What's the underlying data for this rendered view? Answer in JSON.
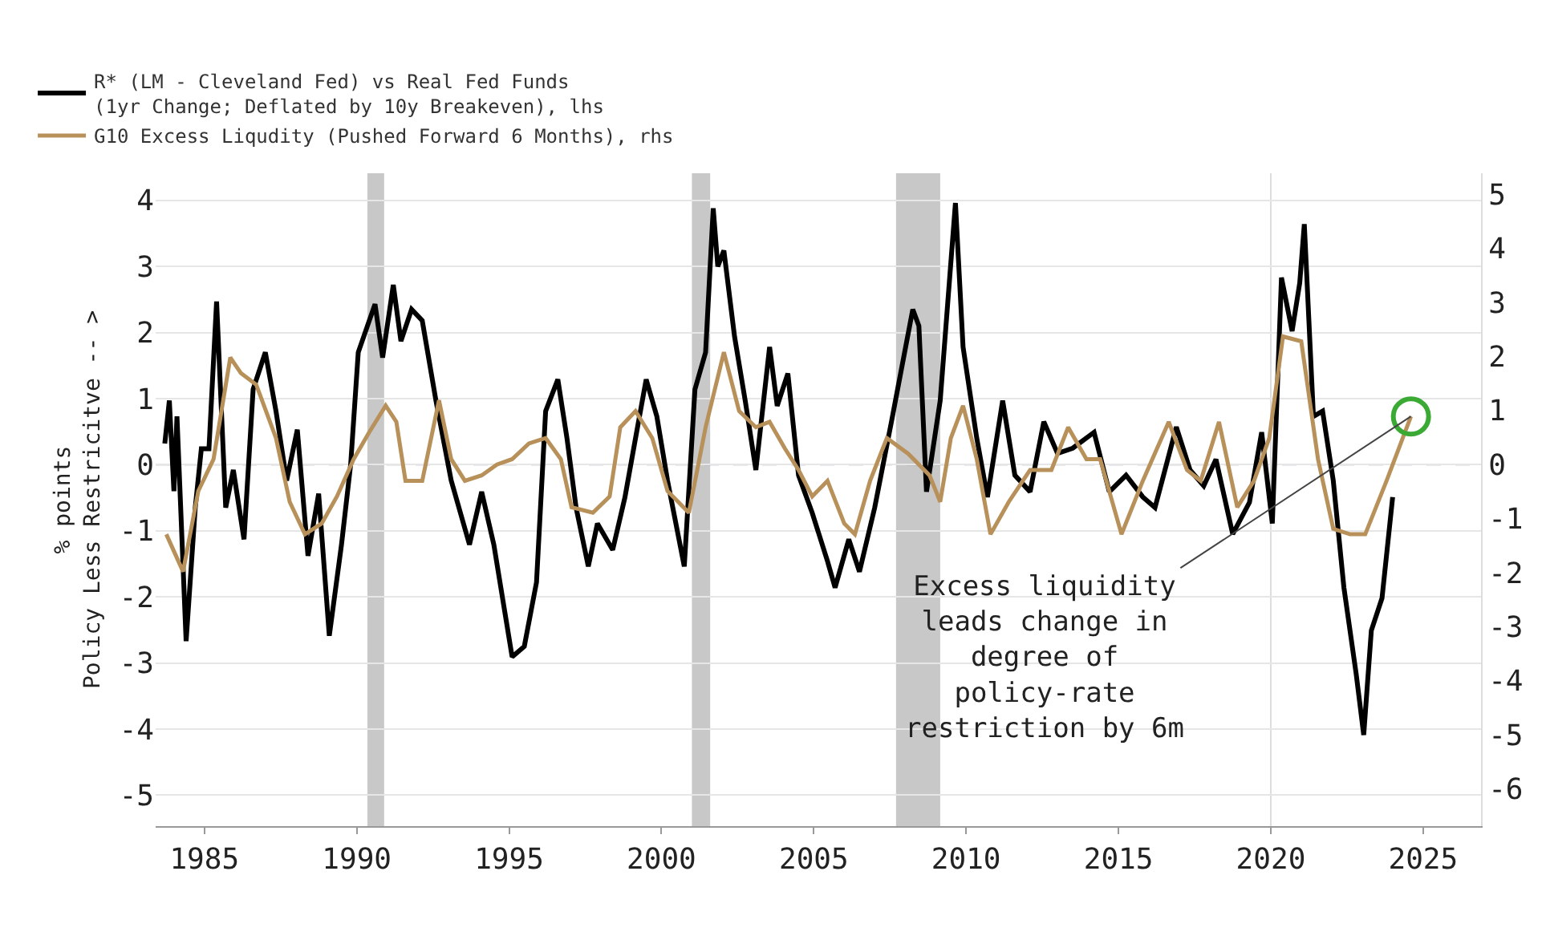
{
  "chart_data": {
    "type": "line",
    "ylabel": "% points\nPolicy Less Restricitve -- >",
    "xlim": [
      1983.4,
      2026.9
    ],
    "xticks": [
      1985,
      1990,
      1995,
      2000,
      2005,
      2010,
      2015,
      2020,
      2025
    ],
    "ylim": [
      -5.47,
      4.41
    ],
    "yticks": [
      -5,
      -4,
      -3,
      -2,
      -1,
      0,
      1,
      2,
      3,
      4
    ],
    "y2lim": [
      -6.69,
      5.39
    ],
    "y2ticks": [
      -6,
      -5,
      -4,
      -3,
      -2,
      -1,
      0,
      1,
      2,
      3,
      4,
      5
    ],
    "grid": "y",
    "legend": "top left",
    "line_style": "solid",
    "marker": "none",
    "series": [
      {
        "name": "R* (LM - Cleveland Fed) vs Real Fed Funds\n(1yr Change; Deflated by 10y Breakeven), lhs",
        "color": "#000000",
        "x": [
          1983.7,
          1983.85,
          1984.0,
          1984.1,
          1984.4,
          1984.7,
          1984.9,
          1985.15,
          1985.4,
          1985.7,
          1985.95,
          1986.3,
          1986.6,
          1987.0,
          1987.35,
          1987.7,
          1988.05,
          1988.4,
          1988.75,
          1989.1,
          1989.5,
          1989.8,
          1990.05,
          1990.6,
          1990.85,
          1991.2,
          1991.45,
          1991.8,
          1992.15,
          1992.6,
          1993.1,
          1993.7,
          1994.1,
          1994.5,
          1995.1,
          1995.5,
          1995.9,
          1996.2,
          1996.6,
          1996.9,
          1997.2,
          1997.6,
          1997.9,
          1998.4,
          1998.8,
          1999.15,
          1999.5,
          1999.85,
          2000.2,
          2000.75,
          2001.1,
          2001.45,
          2001.7,
          2001.85,
          2002.05,
          2002.4,
          2002.75,
          2003.1,
          2003.55,
          2003.8,
          2004.15,
          2004.5,
          2004.95,
          2005.45,
          2005.7,
          2006.15,
          2006.5,
          2007.0,
          2007.55,
          2008.25,
          2008.45,
          2008.7,
          2009.15,
          2009.65,
          2009.9,
          2010.35,
          2010.7,
          2011.2,
          2011.6,
          2012.1,
          2012.55,
          2013.0,
          2013.5,
          2014.2,
          2014.7,
          2015.25,
          2015.8,
          2016.2,
          2016.9,
          2017.35,
          2017.8,
          2018.2,
          2018.75,
          2019.3,
          2019.7,
          2020.05,
          2020.35,
          2020.7,
          2020.95,
          2021.1,
          2021.4,
          2021.7,
          2022.05,
          2022.4,
          2022.8,
          2023.05,
          2023.3,
          2023.65,
          2024.0
        ],
        "values": [
          0.32,
          0.97,
          -0.4,
          0.73,
          -2.67,
          -0.65,
          0.24,
          0.24,
          2.47,
          -0.65,
          -0.08,
          -1.13,
          1.14,
          1.7,
          0.81,
          -0.24,
          0.53,
          -1.38,
          -0.44,
          -2.59,
          -1.21,
          0.0,
          1.7,
          2.43,
          1.62,
          2.72,
          1.87,
          2.35,
          2.18,
          0.97,
          -0.24,
          -1.21,
          -0.41,
          -1.21,
          -2.91,
          -2.75,
          -1.78,
          0.81,
          1.29,
          0.4,
          -0.65,
          -1.54,
          -0.89,
          -1.29,
          -0.5,
          0.4,
          1.29,
          0.73,
          -0.24,
          -1.54,
          1.14,
          1.7,
          3.88,
          3.0,
          3.24,
          1.94,
          0.97,
          -0.08,
          1.78,
          0.89,
          1.38,
          -0.16,
          -0.73,
          -1.46,
          -1.86,
          -1.13,
          -1.62,
          -0.65,
          0.65,
          2.35,
          2.1,
          -0.41,
          0.97,
          3.96,
          1.78,
          0.4,
          -0.49,
          0.97,
          -0.16,
          -0.41,
          0.65,
          0.17,
          0.25,
          0.49,
          -0.41,
          -0.16,
          -0.49,
          -0.65,
          0.57,
          -0.08,
          -0.32,
          0.08,
          -1.05,
          -0.57,
          0.49,
          -0.89,
          2.83,
          2.02,
          2.75,
          3.64,
          0.73,
          0.81,
          -0.24,
          -1.86,
          -3.16,
          -4.09,
          -2.51,
          -2.02,
          -0.49
        ]
      },
      {
        "name": "G10 Excess Liqudity (Pushed Forward 6 Months), rhs",
        "color": "#b8905a",
        "axis": "y2",
        "x": [
          1983.75,
          1984.3,
          1984.8,
          1985.3,
          1985.85,
          1986.2,
          1986.7,
          1987.35,
          1987.8,
          1988.3,
          1988.85,
          1989.35,
          1989.9,
          1990.4,
          1990.95,
          1991.3,
          1991.6,
          1992.15,
          1992.7,
          1993.1,
          1993.55,
          1994.1,
          1994.6,
          1995.1,
          1995.65,
          1996.2,
          1996.7,
          1997.05,
          1997.75,
          1998.3,
          1998.65,
          1999.15,
          1999.7,
          2000.2,
          2000.9,
          2001.45,
          2002.05,
          2002.55,
          2003.1,
          2003.55,
          2004.05,
          2004.5,
          2004.95,
          2005.45,
          2006.0,
          2006.35,
          2006.85,
          2007.4,
          2008.1,
          2008.8,
          2009.15,
          2009.5,
          2009.9,
          2010.35,
          2010.8,
          2011.4,
          2012.1,
          2012.8,
          2013.35,
          2013.95,
          2014.4,
          2015.1,
          2015.8,
          2016.65,
          2017.25,
          2017.7,
          2018.3,
          2018.9,
          2019.45,
          2019.95,
          2020.4,
          2021.0,
          2021.55,
          2022.05,
          2022.6,
          2023.1,
          2023.8,
          2024.6
        ],
        "values": [
          -1.29,
          -1.98,
          -0.49,
          0.1,
          1.98,
          1.69,
          1.48,
          0.49,
          -0.69,
          -1.29,
          -1.09,
          -0.59,
          0.1,
          0.59,
          1.09,
          0.79,
          -0.3,
          -0.3,
          1.19,
          0.1,
          -0.3,
          -0.2,
          0.0,
          0.1,
          0.39,
          0.49,
          0.1,
          -0.79,
          -0.89,
          -0.59,
          0.69,
          0.99,
          0.49,
          -0.49,
          -0.89,
          0.69,
          2.08,
          0.99,
          0.69,
          0.79,
          0.3,
          -0.1,
          -0.59,
          -0.3,
          -1.09,
          -1.29,
          -0.3,
          0.49,
          0.2,
          -0.2,
          -0.69,
          0.49,
          1.09,
          0.1,
          -1.29,
          -0.69,
          -0.1,
          -0.1,
          0.69,
          0.1,
          0.1,
          -1.29,
          -0.3,
          0.79,
          -0.1,
          -0.3,
          0.79,
          -0.79,
          -0.3,
          0.49,
          2.37,
          2.28,
          0.1,
          -1.19,
          -1.29,
          -1.29,
          -0.3,
          0.89
        ]
      }
    ],
    "ref_lines": [
      {
        "axis": "y",
        "value": 0,
        "color": "#9aa5b0",
        "line_style": "dashed"
      },
      {
        "axis": "x",
        "value": 2020,
        "color": "#dddddd",
        "line_style": "solid"
      }
    ],
    "bands": [
      {
        "axis": "x",
        "from": 1990.35,
        "to": 1990.9,
        "color": "#c8c8c8"
      },
      {
        "axis": "x",
        "from": 2001.0,
        "to": 2001.6,
        "color": "#c8c8c8"
      },
      {
        "axis": "x",
        "from": 2007.7,
        "to": 2009.15,
        "color": "#c8c8c8"
      }
    ],
    "annotations": [
      {
        "text": "Excess liquidity\nleads change in\ndegree of\npolicy-rate\nrestriction by 6m",
        "x": 2024.6,
        "y": 0.73
      }
    ]
  }
}
